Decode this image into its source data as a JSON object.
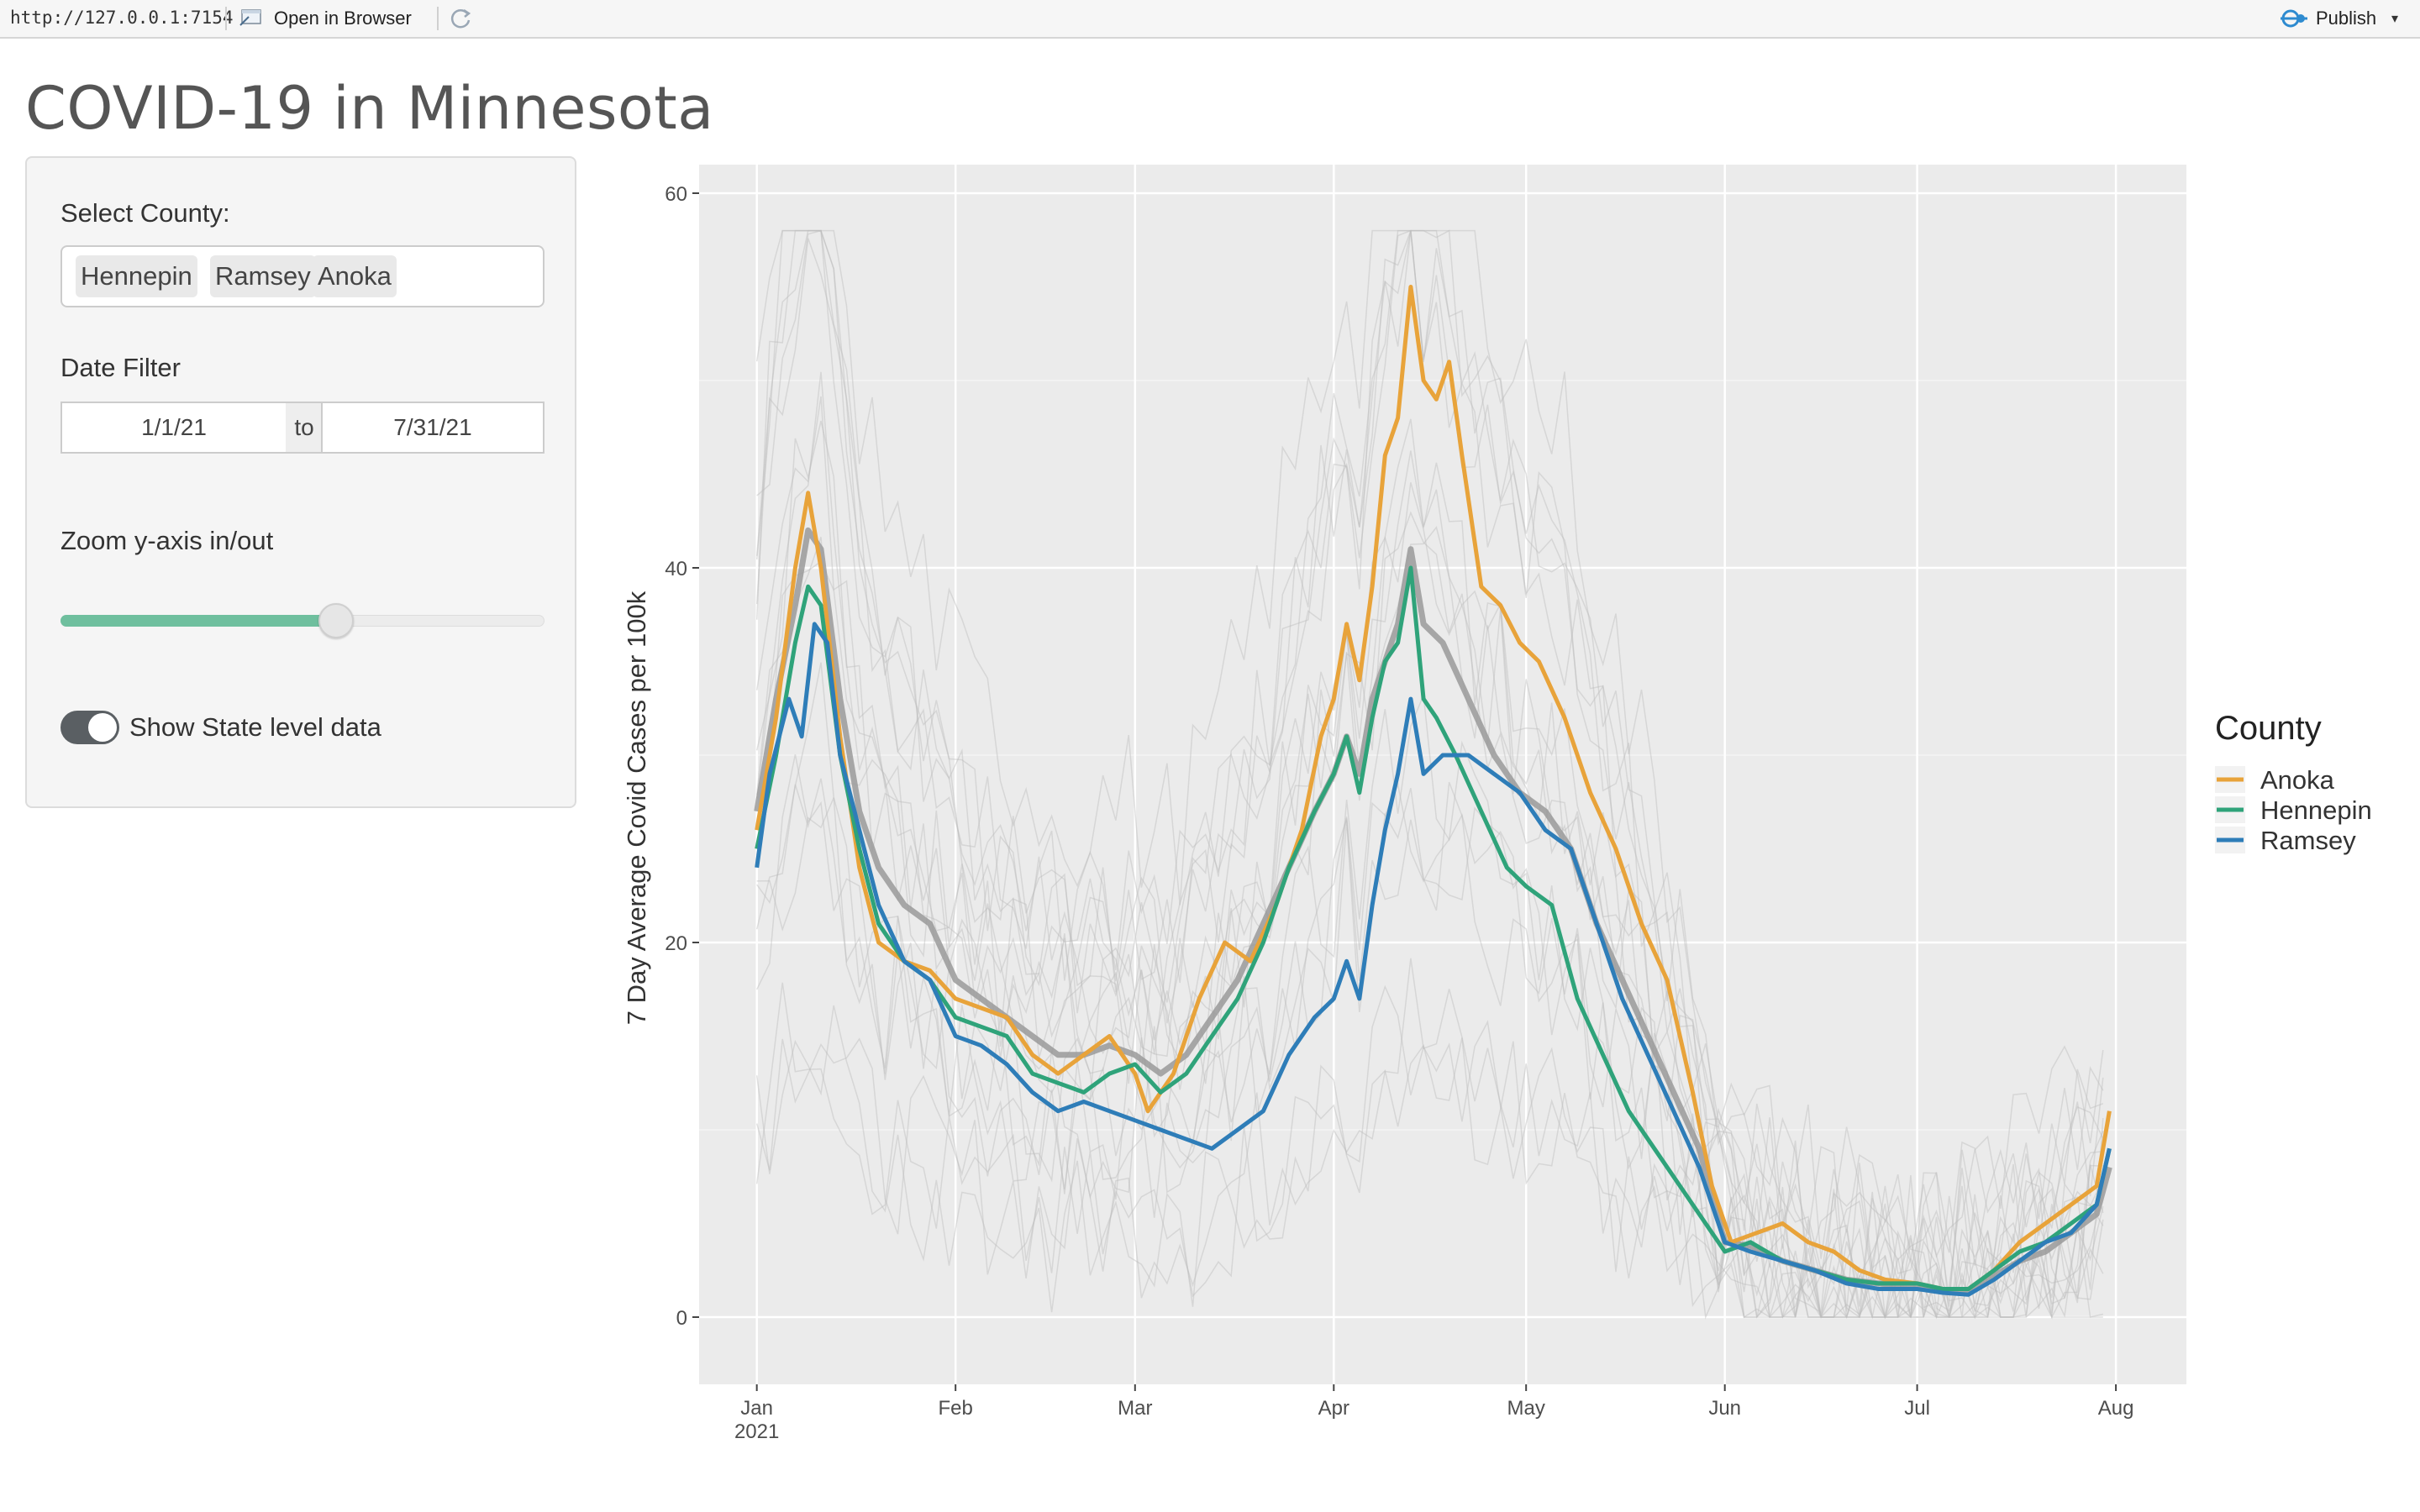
{
  "topbar": {
    "url": "http://127.0.0.1:7154",
    "open_in_browser": "Open in Browser",
    "publish": "Publish"
  },
  "page_title": "COVID-19 in Minnesota",
  "sidebar": {
    "select_county_label": "Select County:",
    "selected_counties": [
      "Hennepin",
      "Ramsey",
      "Anoka"
    ],
    "date_filter_label": "Date Filter",
    "date_start": "1/1/21",
    "date_to": "to",
    "date_end": "7/31/21",
    "zoom_label": "Zoom y-axis in/out",
    "zoom_level": 0.57,
    "toggle_label": "Show State level data",
    "toggle_on": true
  },
  "chart_data": {
    "type": "line",
    "ylabel": "7 Day Average Covid Cases per 100k",
    "xlabel": "",
    "ylim": [
      0,
      60
    ],
    "y_ticks": [
      0,
      20,
      40,
      60
    ],
    "x_ticks": [
      {
        "date": "2021-01-01",
        "label": "Jan",
        "sub": "2021"
      },
      {
        "date": "2021-02-01",
        "label": "Feb",
        "sub": ""
      },
      {
        "date": "2021-03-01",
        "label": "Mar",
        "sub": ""
      },
      {
        "date": "2021-04-01",
        "label": "Apr",
        "sub": ""
      },
      {
        "date": "2021-05-01",
        "label": "May",
        "sub": ""
      },
      {
        "date": "2021-06-01",
        "label": "Jun",
        "sub": ""
      },
      {
        "date": "2021-07-01",
        "label": "Jul",
        "sub": ""
      },
      {
        "date": "2021-08-01",
        "label": "Aug",
        "sub": ""
      }
    ],
    "xlim": [
      "2020-12-23",
      "2021-08-12"
    ],
    "legend": {
      "title": "County",
      "placement": "right"
    },
    "grid": true,
    "background_series": {
      "description_color": "#bdbdbd",
      "count": 18
    },
    "series": [
      {
        "name": "Anoka",
        "color": "#E8A33A",
        "points": [
          [
            "2021-01-01",
            26
          ],
          [
            "2021-01-04",
            32
          ],
          [
            "2021-01-07",
            40
          ],
          [
            "2021-01-09",
            44
          ],
          [
            "2021-01-11",
            40
          ],
          [
            "2021-01-14",
            31
          ],
          [
            "2021-01-17",
            24
          ],
          [
            "2021-01-20",
            20
          ],
          [
            "2021-01-24",
            19
          ],
          [
            "2021-01-28",
            18.5
          ],
          [
            "2021-02-01",
            17
          ],
          [
            "2021-02-05",
            16.5
          ],
          [
            "2021-02-09",
            16
          ],
          [
            "2021-02-13",
            14
          ],
          [
            "2021-02-17",
            13
          ],
          [
            "2021-02-21",
            14
          ],
          [
            "2021-02-25",
            15
          ],
          [
            "2021-03-01",
            13
          ],
          [
            "2021-03-03",
            11
          ],
          [
            "2021-03-07",
            13
          ],
          [
            "2021-03-11",
            17
          ],
          [
            "2021-03-15",
            20
          ],
          [
            "2021-03-19",
            19
          ],
          [
            "2021-03-23",
            22
          ],
          [
            "2021-03-27",
            26
          ],
          [
            "2021-03-30",
            31
          ],
          [
            "2021-04-01",
            33
          ],
          [
            "2021-04-03",
            37
          ],
          [
            "2021-04-05",
            34
          ],
          [
            "2021-04-07",
            39
          ],
          [
            "2021-04-09",
            46
          ],
          [
            "2021-04-11",
            48
          ],
          [
            "2021-04-13",
            55
          ],
          [
            "2021-04-15",
            50
          ],
          [
            "2021-04-17",
            49
          ],
          [
            "2021-04-19",
            51
          ],
          [
            "2021-04-21",
            46
          ],
          [
            "2021-04-24",
            39
          ],
          [
            "2021-04-27",
            38
          ],
          [
            "2021-04-30",
            36
          ],
          [
            "2021-05-03",
            35
          ],
          [
            "2021-05-07",
            32
          ],
          [
            "2021-05-11",
            28
          ],
          [
            "2021-05-15",
            25
          ],
          [
            "2021-05-19",
            21
          ],
          [
            "2021-05-23",
            18
          ],
          [
            "2021-05-27",
            12
          ],
          [
            "2021-05-30",
            7
          ],
          [
            "2021-06-02",
            4
          ],
          [
            "2021-06-06",
            4.5
          ],
          [
            "2021-06-10",
            5
          ],
          [
            "2021-06-14",
            4
          ],
          [
            "2021-06-18",
            3.5
          ],
          [
            "2021-06-22",
            2.5
          ],
          [
            "2021-06-26",
            2
          ],
          [
            "2021-07-01",
            1.8
          ],
          [
            "2021-07-05",
            1.5
          ],
          [
            "2021-07-09",
            1.5
          ],
          [
            "2021-07-13",
            2.5
          ],
          [
            "2021-07-17",
            4
          ],
          [
            "2021-07-21",
            5
          ],
          [
            "2021-07-25",
            6
          ],
          [
            "2021-07-29",
            7
          ],
          [
            "2021-07-31",
            11
          ]
        ]
      },
      {
        "name": "Hennepin",
        "color": "#2FA37A",
        "points": [
          [
            "2021-01-01",
            25
          ],
          [
            "2021-01-04",
            30
          ],
          [
            "2021-01-07",
            36
          ],
          [
            "2021-01-09",
            39
          ],
          [
            "2021-01-11",
            38
          ],
          [
            "2021-01-14",
            30
          ],
          [
            "2021-01-17",
            25
          ],
          [
            "2021-01-20",
            21
          ],
          [
            "2021-01-24",
            19
          ],
          [
            "2021-01-28",
            18
          ],
          [
            "2021-02-01",
            16
          ],
          [
            "2021-02-05",
            15.5
          ],
          [
            "2021-02-09",
            15
          ],
          [
            "2021-02-13",
            13
          ],
          [
            "2021-02-17",
            12.5
          ],
          [
            "2021-02-21",
            12
          ],
          [
            "2021-02-25",
            13
          ],
          [
            "2021-03-01",
            13.5
          ],
          [
            "2021-03-05",
            12
          ],
          [
            "2021-03-09",
            13
          ],
          [
            "2021-03-13",
            15
          ],
          [
            "2021-03-17",
            17
          ],
          [
            "2021-03-21",
            20
          ],
          [
            "2021-03-25",
            24
          ],
          [
            "2021-03-29",
            27
          ],
          [
            "2021-04-01",
            29
          ],
          [
            "2021-04-03",
            31
          ],
          [
            "2021-04-05",
            28
          ],
          [
            "2021-04-07",
            32
          ],
          [
            "2021-04-09",
            35
          ],
          [
            "2021-04-11",
            36
          ],
          [
            "2021-04-13",
            40
          ],
          [
            "2021-04-15",
            33
          ],
          [
            "2021-04-17",
            32
          ],
          [
            "2021-04-20",
            30
          ],
          [
            "2021-04-24",
            27
          ],
          [
            "2021-04-28",
            24
          ],
          [
            "2021-05-01",
            23
          ],
          [
            "2021-05-05",
            22
          ],
          [
            "2021-05-09",
            17
          ],
          [
            "2021-05-13",
            14
          ],
          [
            "2021-05-17",
            11
          ],
          [
            "2021-05-21",
            9
          ],
          [
            "2021-05-25",
            7
          ],
          [
            "2021-05-29",
            5
          ],
          [
            "2021-06-01",
            3.5
          ],
          [
            "2021-06-05",
            4
          ],
          [
            "2021-06-10",
            3
          ],
          [
            "2021-06-15",
            2.5
          ],
          [
            "2021-06-20",
            2
          ],
          [
            "2021-06-25",
            1.8
          ],
          [
            "2021-07-01",
            1.8
          ],
          [
            "2021-07-05",
            1.5
          ],
          [
            "2021-07-09",
            1.5
          ],
          [
            "2021-07-13",
            2.5
          ],
          [
            "2021-07-17",
            3.5
          ],
          [
            "2021-07-21",
            4
          ],
          [
            "2021-07-25",
            5
          ],
          [
            "2021-07-29",
            6
          ],
          [
            "2021-07-31",
            9
          ]
        ]
      },
      {
        "name": "Ramsey",
        "color": "#2E7DB8",
        "points": [
          [
            "2021-01-01",
            24
          ],
          [
            "2021-01-03",
            29
          ],
          [
            "2021-01-06",
            33
          ],
          [
            "2021-01-08",
            31
          ],
          [
            "2021-01-10",
            37
          ],
          [
            "2021-01-12",
            36
          ],
          [
            "2021-01-14",
            30
          ],
          [
            "2021-01-17",
            26
          ],
          [
            "2021-01-20",
            22
          ],
          [
            "2021-01-24",
            19
          ],
          [
            "2021-01-28",
            18
          ],
          [
            "2021-02-01",
            15
          ],
          [
            "2021-02-05",
            14.5
          ],
          [
            "2021-02-09",
            13.5
          ],
          [
            "2021-02-13",
            12
          ],
          [
            "2021-02-17",
            11
          ],
          [
            "2021-02-21",
            11.5
          ],
          [
            "2021-02-25",
            11
          ],
          [
            "2021-03-01",
            10.5
          ],
          [
            "2021-03-05",
            10
          ],
          [
            "2021-03-09",
            9.5
          ],
          [
            "2021-03-13",
            9
          ],
          [
            "2021-03-17",
            10
          ],
          [
            "2021-03-21",
            11
          ],
          [
            "2021-03-25",
            14
          ],
          [
            "2021-03-29",
            16
          ],
          [
            "2021-04-01",
            17
          ],
          [
            "2021-04-03",
            19
          ],
          [
            "2021-04-05",
            17
          ],
          [
            "2021-04-07",
            22
          ],
          [
            "2021-04-09",
            26
          ],
          [
            "2021-04-11",
            29
          ],
          [
            "2021-04-13",
            33
          ],
          [
            "2021-04-15",
            29
          ],
          [
            "2021-04-18",
            30
          ],
          [
            "2021-04-22",
            30
          ],
          [
            "2021-04-26",
            29
          ],
          [
            "2021-04-30",
            28
          ],
          [
            "2021-05-04",
            26
          ],
          [
            "2021-05-08",
            25
          ],
          [
            "2021-05-12",
            21
          ],
          [
            "2021-05-16",
            17
          ],
          [
            "2021-05-20",
            14
          ],
          [
            "2021-05-24",
            11
          ],
          [
            "2021-05-28",
            8
          ],
          [
            "2021-06-01",
            4
          ],
          [
            "2021-06-05",
            3.5
          ],
          [
            "2021-06-10",
            3
          ],
          [
            "2021-06-15",
            2.5
          ],
          [
            "2021-06-20",
            1.8
          ],
          [
            "2021-06-25",
            1.5
          ],
          [
            "2021-07-01",
            1.5
          ],
          [
            "2021-07-05",
            1.3
          ],
          [
            "2021-07-09",
            1.2
          ],
          [
            "2021-07-13",
            2
          ],
          [
            "2021-07-17",
            3
          ],
          [
            "2021-07-21",
            4
          ],
          [
            "2021-07-25",
            4.5
          ],
          [
            "2021-07-29",
            6
          ],
          [
            "2021-07-31",
            9
          ]
        ]
      },
      {
        "name": "",
        "color": "#9a9a9a",
        "points": [
          [
            "2021-01-01",
            27
          ],
          [
            "2021-01-04",
            33
          ],
          [
            "2021-01-07",
            38
          ],
          [
            "2021-01-09",
            42
          ],
          [
            "2021-01-11",
            41
          ],
          [
            "2021-01-14",
            33
          ],
          [
            "2021-01-17",
            27
          ],
          [
            "2021-01-20",
            24
          ],
          [
            "2021-01-24",
            22
          ],
          [
            "2021-01-28",
            21
          ],
          [
            "2021-02-01",
            18
          ],
          [
            "2021-02-05",
            17
          ],
          [
            "2021-02-09",
            16
          ],
          [
            "2021-02-13",
            15
          ],
          [
            "2021-02-17",
            14
          ],
          [
            "2021-02-21",
            14
          ],
          [
            "2021-02-25",
            14.5
          ],
          [
            "2021-03-01",
            14
          ],
          [
            "2021-03-05",
            13
          ],
          [
            "2021-03-09",
            14
          ],
          [
            "2021-03-13",
            16
          ],
          [
            "2021-03-17",
            18
          ],
          [
            "2021-03-21",
            21
          ],
          [
            "2021-03-25",
            24
          ],
          [
            "2021-03-29",
            27
          ],
          [
            "2021-04-01",
            29
          ],
          [
            "2021-04-03",
            31
          ],
          [
            "2021-04-05",
            29
          ],
          [
            "2021-04-07",
            33
          ],
          [
            "2021-04-09",
            35
          ],
          [
            "2021-04-11",
            37
          ],
          [
            "2021-04-13",
            41
          ],
          [
            "2021-04-15",
            37
          ],
          [
            "2021-04-18",
            36
          ],
          [
            "2021-04-22",
            33
          ],
          [
            "2021-04-26",
            30
          ],
          [
            "2021-04-30",
            28
          ],
          [
            "2021-05-04",
            27
          ],
          [
            "2021-05-08",
            25
          ],
          [
            "2021-05-12",
            21
          ],
          [
            "2021-05-16",
            18
          ],
          [
            "2021-05-20",
            15
          ],
          [
            "2021-05-24",
            12
          ],
          [
            "2021-05-28",
            9
          ],
          [
            "2021-06-01",
            4
          ],
          [
            "2021-06-05",
            3.8
          ],
          [
            "2021-06-10",
            3
          ],
          [
            "2021-06-15",
            2.5
          ],
          [
            "2021-06-20",
            2
          ],
          [
            "2021-06-25",
            1.8
          ],
          [
            "2021-07-01",
            1.6
          ],
          [
            "2021-07-05",
            1.4
          ],
          [
            "2021-07-09",
            1.3
          ],
          [
            "2021-07-13",
            2.2
          ],
          [
            "2021-07-17",
            3
          ],
          [
            "2021-07-21",
            3.5
          ],
          [
            "2021-07-25",
            4.5
          ],
          [
            "2021-07-29",
            5.5
          ],
          [
            "2021-07-31",
            8
          ]
        ]
      }
    ]
  }
}
